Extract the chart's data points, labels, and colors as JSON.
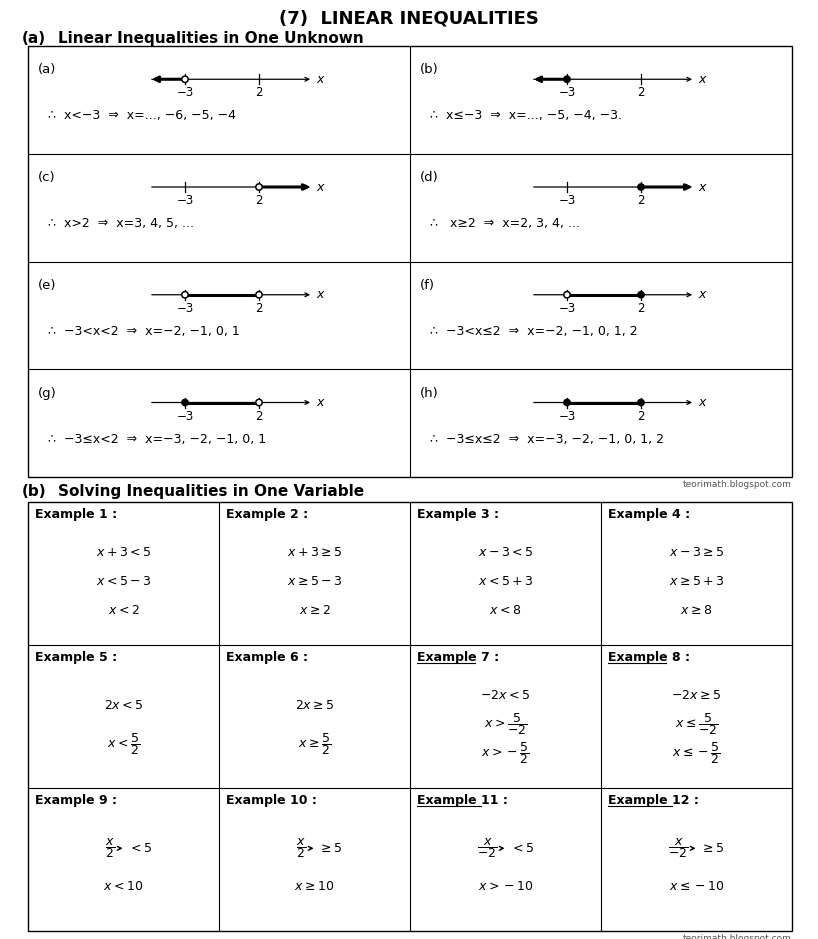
{
  "title": "(7)  LINEAR INEQUALITIES",
  "section_a_label": "(a)",
  "section_a_title": "Linear Inequalities in One Unknown",
  "section_b_label": "(b)",
  "section_b_title": "Solving Inequalities in One Variable",
  "watermark": "teorimath.blogspot.com",
  "bg_color": "#ffffff",
  "number_line_panels": [
    {
      "label": "(a)",
      "description": "∴  x<−3  ⇒  x=..., −6, −5, −4",
      "arrow_left": true,
      "arrow_right": false,
      "filled_left": false,
      "filled_right": false,
      "segment": false
    },
    {
      "label": "(b)",
      "description": "∴  x≤−3  ⇒  x=..., −5, −4, −3.",
      "arrow_left": true,
      "arrow_right": false,
      "filled_left": true,
      "filled_right": false,
      "segment": false
    },
    {
      "label": "(c)",
      "description": "∴  x>2  ⇒  x=3, 4, 5, ...",
      "arrow_left": false,
      "arrow_right": true,
      "filled_left": false,
      "filled_right": false,
      "segment": false
    },
    {
      "label": "(d)",
      "description": "∴   x≥2  ⇒  x=2, 3, 4, ...",
      "arrow_left": false,
      "arrow_right": true,
      "filled_left": false,
      "filled_right": true,
      "segment": false
    },
    {
      "label": "(e)",
      "description": "∴  −3<x<2  ⇒  x=−2, −1, 0, 1",
      "arrow_left": false,
      "arrow_right": false,
      "filled_left": false,
      "filled_right": false,
      "segment": true
    },
    {
      "label": "(f)",
      "description": "∴  −3<x≤2  ⇒  x=−2, −1, 0, 1, 2",
      "arrow_left": false,
      "arrow_right": false,
      "filled_left": false,
      "filled_right": true,
      "segment": true
    },
    {
      "label": "(g)",
      "description": "∴  −3≤x<2  ⇒  x=−3, −2, −1, 0, 1",
      "arrow_left": false,
      "arrow_right": false,
      "filled_left": true,
      "filled_right": false,
      "segment": true
    },
    {
      "label": "(h)",
      "description": "∴  −3≤x≤2  ⇒  x=−3, −2, −1, 0, 1, 2",
      "arrow_left": false,
      "arrow_right": false,
      "filled_left": true,
      "filled_right": true,
      "segment": true
    }
  ],
  "examples": [
    {
      "header": "Example 1 :",
      "underline": false,
      "lines": [
        "$x+3<5$",
        "$x<5-3$",
        "$x<2$"
      ]
    },
    {
      "header": "Example 2 :",
      "underline": false,
      "lines": [
        "$x+3\\geq5$",
        "$x\\geq5-3$",
        "$x\\geq2$"
      ]
    },
    {
      "header": "Example 3 :",
      "underline": false,
      "lines": [
        "$x-3<5$",
        "$x<5+3$",
        "$x<8$"
      ]
    },
    {
      "header": "Example 4 :",
      "underline": false,
      "lines": [
        "$x-3\\geq5$",
        "$x\\geq5+3$",
        "$x\\geq8$"
      ]
    },
    {
      "header": "Example 5 :",
      "underline": false,
      "lines": [
        "$2x<5$",
        "$x<\\dfrac{5}{2}$"
      ]
    },
    {
      "header": "Example 6 :",
      "underline": false,
      "lines": [
        "$2x\\geq5$",
        "$x\\geq\\dfrac{5}{2}$"
      ]
    },
    {
      "header": "Example 7 :",
      "underline": true,
      "lines": [
        "$-2x<5$",
        "$x>\\dfrac{5}{-2}$",
        "$x>-\\dfrac{5}{2}$"
      ]
    },
    {
      "header": "Example 8 :",
      "underline": true,
      "lines": [
        "$-2x\\geq5$",
        "$x\\leq\\dfrac{5}{-2}$",
        "$x\\leq-\\dfrac{5}{2}$"
      ]
    },
    {
      "header": "Example 9 :",
      "underline": false,
      "lines": [
        "$\\dfrac{x}{2}\\!\\to\\!<5$",
        "$x<10$"
      ]
    },
    {
      "header": "Example 10 :",
      "underline": false,
      "lines": [
        "$\\dfrac{x}{2}\\!\\to\\!\\geq5$",
        "$x\\geq10$"
      ]
    },
    {
      "header": "Example 11 :",
      "underline": true,
      "lines": [
        "$\\dfrac{x}{-2}\\!\\to\\!<5$",
        "$x>-10$"
      ]
    },
    {
      "header": "Example 12 :",
      "underline": true,
      "lines": [
        "$\\dfrac{x}{-2}\\!\\to\\!\\geq5$",
        "$x\\leq-10$"
      ]
    }
  ]
}
